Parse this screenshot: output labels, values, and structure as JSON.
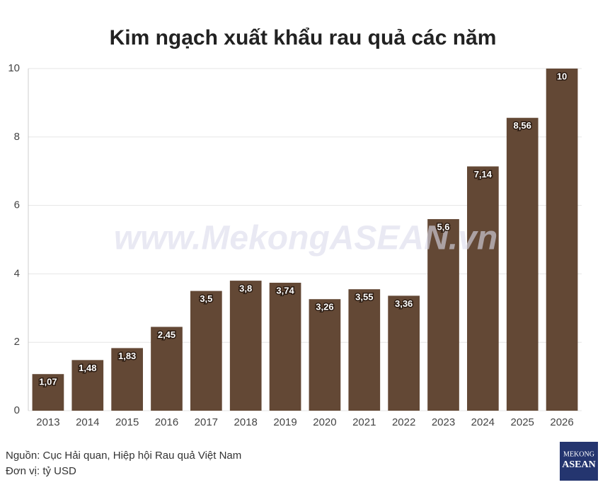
{
  "chart_data": {
    "type": "bar",
    "title": "Kim ngạch xuất khẩu rau quả các năm",
    "categories": [
      "2013",
      "2014",
      "2015",
      "2016",
      "2017",
      "2018",
      "2019",
      "2020",
      "2021",
      "2022",
      "2023",
      "2024",
      "2025",
      "2026"
    ],
    "values": [
      1.07,
      1.48,
      1.83,
      2.45,
      3.5,
      3.8,
      3.74,
      3.26,
      3.55,
      3.36,
      5.6,
      7.14,
      8.56,
      10
    ],
    "value_labels": [
      "1,07",
      "1,48",
      "1,83",
      "2,45",
      "3,5",
      "3,8",
      "3,74",
      "3,26",
      "3,55",
      "3,36",
      "5,6",
      "7,14",
      "8,56",
      "10"
    ],
    "color": "#634835",
    "ylim": [
      0,
      10
    ],
    "yticks": [
      0,
      2,
      4,
      6,
      8,
      10
    ],
    "grid": true,
    "watermark": "www.MekongASEAN.vn",
    "source": "Nguồn: Cục Hải quan, Hiệp hội Rau quả Việt Nam",
    "unit": "Đơn vị: tỷ USD"
  },
  "logo": {
    "line1": "MEKONG",
    "line2": "ASEAN"
  }
}
